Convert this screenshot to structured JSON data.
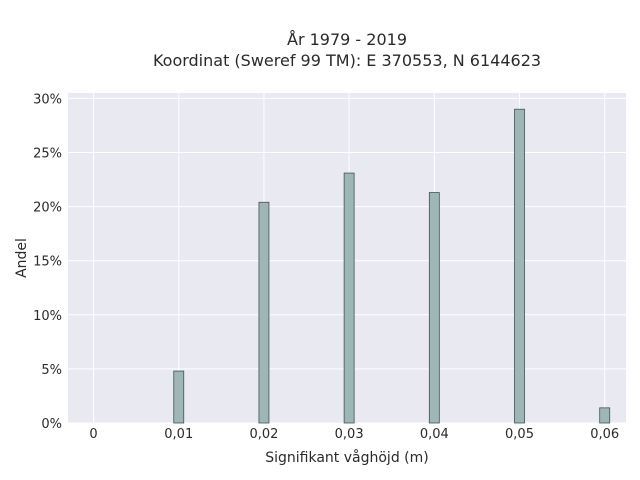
{
  "chart_data": {
    "type": "bar",
    "title": "År 1979 - 2019",
    "subtitle": "Koordinat (Sweref 99 TM): E 370553, N 6144623",
    "xlabel": "Signifikant våghöjd (m)",
    "ylabel": "Andel",
    "x": [
      0.01,
      0.02,
      0.03,
      0.04,
      0.05,
      0.06
    ],
    "values": [
      4.8,
      20.4,
      23.1,
      21.3,
      29.0,
      1.4
    ],
    "xlim": [
      -0.003,
      0.0625
    ],
    "ylim": [
      0,
      30.5
    ],
    "xticks": [
      0,
      0.01,
      0.02,
      0.03,
      0.04,
      0.05,
      0.06
    ],
    "xtick_labels": [
      "0",
      "0,01",
      "0,02",
      "0,03",
      "0,04",
      "0,05",
      "0,06"
    ],
    "yticks": [
      0,
      5,
      10,
      15,
      20,
      25,
      30
    ],
    "ytick_labels": [
      "0%",
      "5%",
      "10%",
      "15%",
      "20%",
      "25%",
      "30%"
    ],
    "grid": true,
    "colors": {
      "plot_background": "#e9e9f1",
      "bar_fill": "#9fb6b6",
      "bar_stroke": "#3f5353",
      "grid": "#ffffff"
    }
  }
}
